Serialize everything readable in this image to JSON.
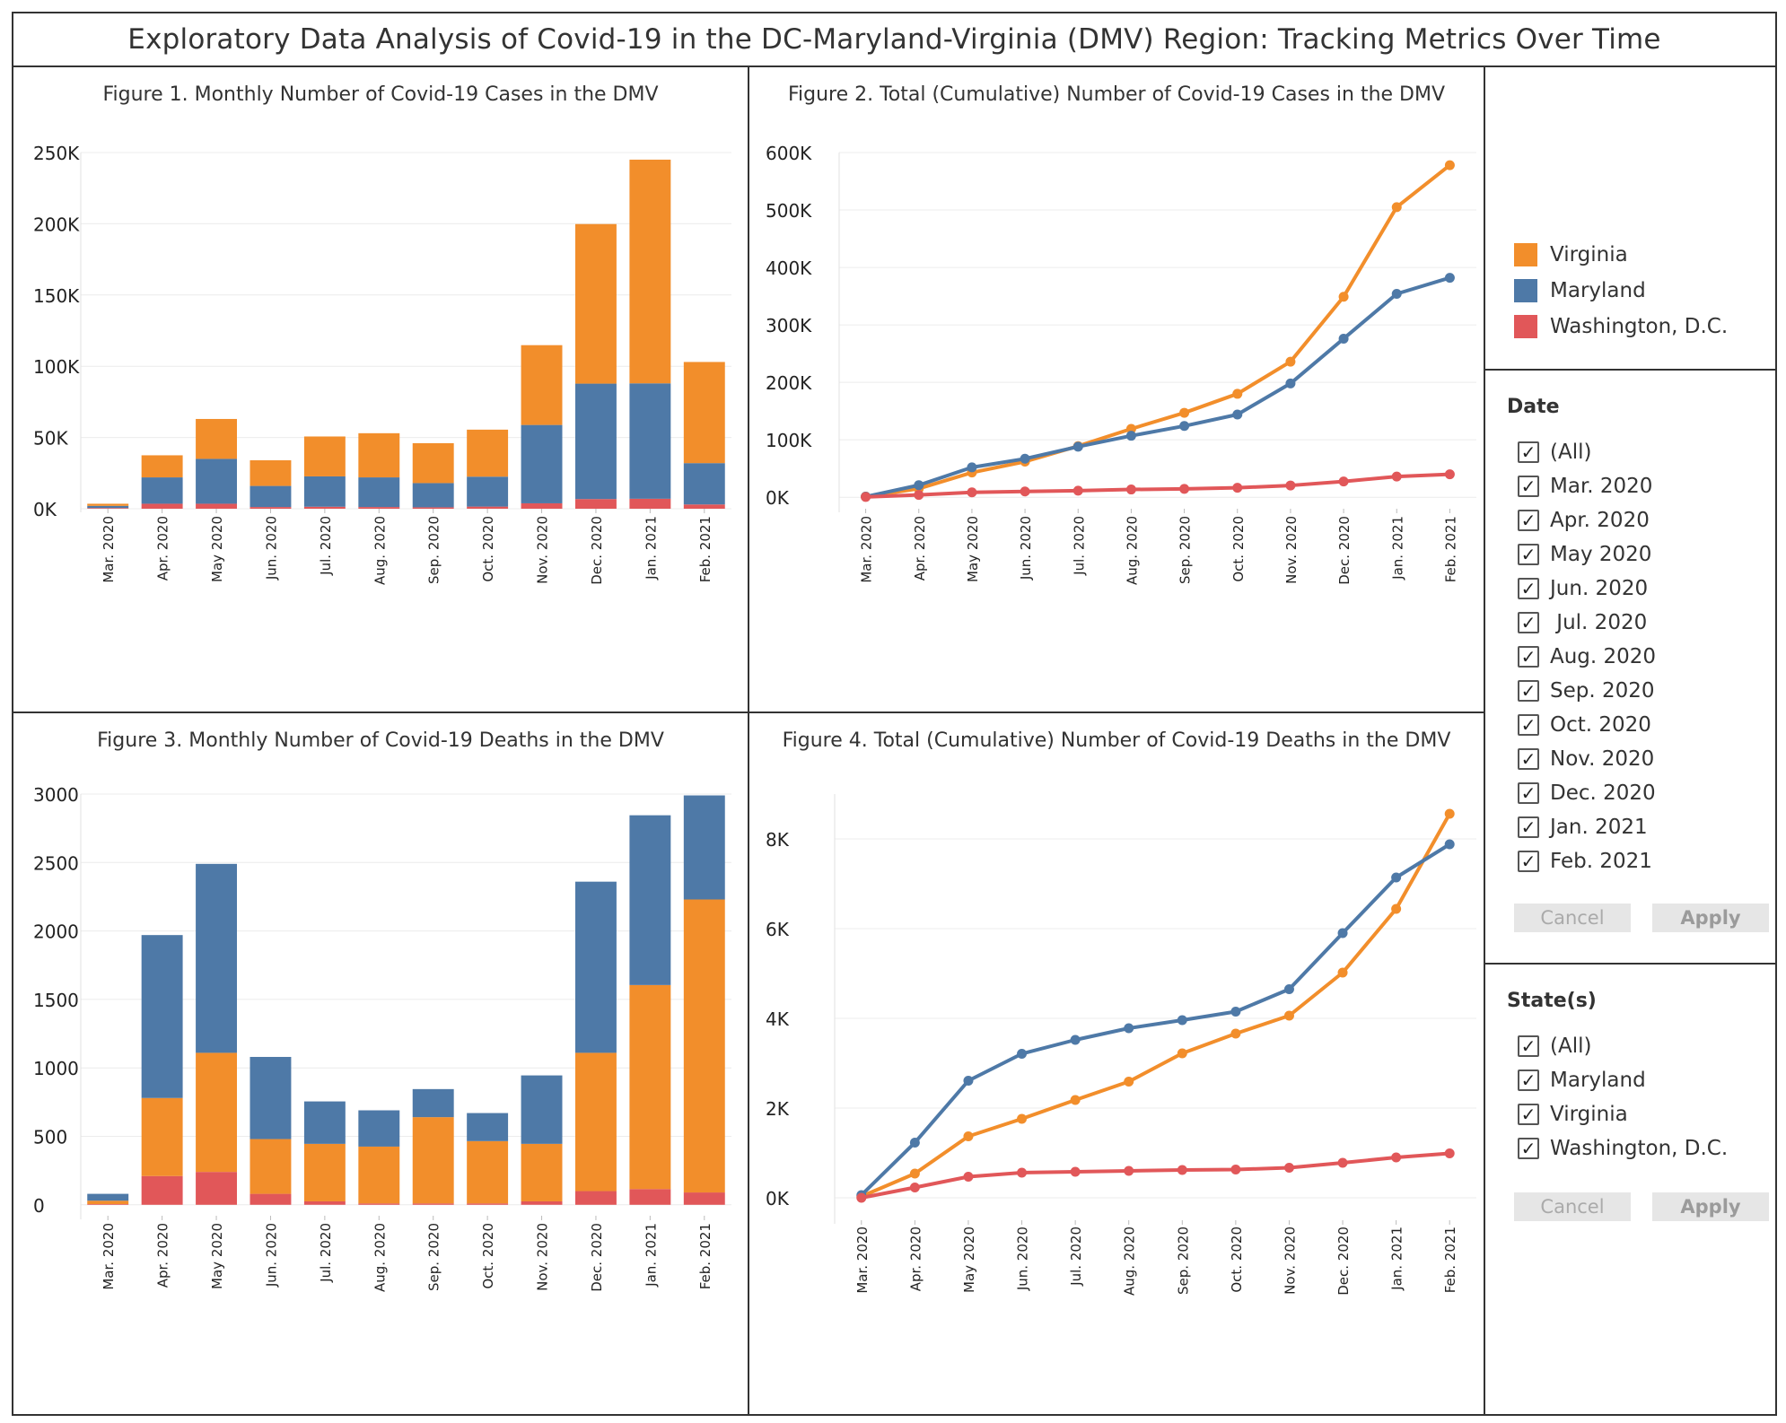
{
  "dashboard": {
    "title": "Exploratory Data Analysis of Covid-19 in the DC-Maryland-Virginia (DMV) Region: Tracking Metrics Over Time"
  },
  "colors": {
    "virginia": "#f28e2b",
    "maryland": "#4e79a7",
    "dc": "#e15759"
  },
  "legend": {
    "items": [
      {
        "label": "Virginia",
        "color": "#f28e2b"
      },
      {
        "label": "Maryland",
        "color": "#4e79a7"
      },
      {
        "label": "Washington, D.C.",
        "color": "#e15759"
      }
    ]
  },
  "filters": {
    "date": {
      "title": "Date",
      "options": [
        "(All)",
        "Mar. 2020",
        "Apr. 2020",
        "May 2020",
        "Jun. 2020",
        " Jul. 2020",
        "Aug. 2020",
        "Sep. 2020",
        "Oct. 2020",
        "Nov. 2020",
        "Dec. 2020",
        "Jan. 2021",
        "Feb. 2021"
      ],
      "cancel_label": "Cancel",
      "apply_label": "Apply"
    },
    "state": {
      "title": "State(s)",
      "options": [
        "(All)",
        "Maryland",
        "Virginia",
        "Washington, D.C."
      ],
      "cancel_label": "Cancel",
      "apply_label": "Apply"
    }
  },
  "chart_data": [
    {
      "type": "bar",
      "stacked": true,
      "title": "Figure 1. Monthly Number of Covid-19 Cases in the DMV",
      "xlabel": "",
      "ylabel": "",
      "categories": [
        "Mar. 2020",
        "Apr. 2020",
        "May 2020",
        "Jun. 2020",
        "Jul. 2020",
        "Aug. 2020",
        "Sep. 2020",
        "Oct. 2020",
        "Nov. 2020",
        "Dec. 2020",
        "Jan. 2021",
        "Feb. 2021"
      ],
      "series": [
        {
          "name": "Washington, D.C.",
          "values": [
            500,
            3500,
            3500,
            1200,
            1400,
            1200,
            1000,
            1500,
            3800,
            6800,
            7000,
            3000
          ]
        },
        {
          "name": "Maryland",
          "values": [
            1500,
            18500,
            31500,
            14800,
            21300,
            20800,
            17000,
            21000,
            55000,
            81000,
            81000,
            29000
          ]
        },
        {
          "name": "Virginia",
          "values": [
            1500,
            15500,
            28000,
            18000,
            28000,
            31000,
            28000,
            33000,
            56000,
            112000,
            157000,
            71000
          ]
        }
      ],
      "yticks": [
        0,
        50000,
        100000,
        150000,
        200000,
        250000
      ],
      "ytick_labels": [
        "0K",
        "50K",
        "100K",
        "150K",
        "200K",
        "250K"
      ],
      "ylim": [
        0,
        250000
      ]
    },
    {
      "type": "line",
      "title": "Figure 2. Total (Cumulative) Number of Covid-19 Cases in the DMV",
      "xlabel": "",
      "ylabel": "",
      "categories": [
        "Mar. 2020",
        "Apr. 2020",
        "May 2020",
        "Jun. 2020",
        "Jul. 2020",
        "Aug. 2020",
        "Sep. 2020",
        "Oct. 2020",
        "Nov. 2020",
        "Dec. 2020",
        "Jan. 2021",
        "Feb. 2021"
      ],
      "series": [
        {
          "name": "Virginia",
          "values": [
            1000,
            15000,
            43000,
            62000,
            89000,
            119000,
            147000,
            180000,
            236000,
            349000,
            505000,
            578000
          ]
        },
        {
          "name": "Maryland",
          "values": [
            1000,
            21000,
            52000,
            67000,
            88000,
            107000,
            124000,
            144000,
            198000,
            276000,
            354000,
            382000
          ]
        },
        {
          "name": "Washington, D.C.",
          "values": [
            500,
            4000,
            8500,
            10000,
            11500,
            13500,
            14500,
            16500,
            20500,
            27500,
            36000,
            40000
          ]
        }
      ],
      "yticks": [
        0,
        100000,
        200000,
        300000,
        400000,
        500000,
        600000
      ],
      "ytick_labels": [
        "0K",
        "100K",
        "200K",
        "300K",
        "400K",
        "500K",
        "600K"
      ],
      "ylim": [
        -20000,
        600000
      ]
    },
    {
      "type": "bar",
      "stacked": true,
      "title": "Figure 3. Monthly Number of Covid-19 Deaths in the DMV",
      "xlabel": "",
      "ylabel": "",
      "categories": [
        "Mar. 2020",
        "Apr. 2020",
        "May 2020",
        "Jun. 2020",
        "Jul. 2020",
        "Aug. 2020",
        "Sep. 2020",
        "Oct. 2020",
        "Nov. 2020",
        "Dec. 2020",
        "Jan. 2021",
        "Feb. 2021"
      ],
      "series": [
        {
          "name": "Washington, D.C.",
          "values": [
            5,
            210,
            240,
            80,
            25,
            10,
            10,
            10,
            25,
            100,
            115,
            90
          ]
        },
        {
          "name": "Virginia",
          "values": [
            25,
            570,
            870,
            400,
            420,
            415,
            630,
            455,
            420,
            1010,
            1490,
            2140
          ]
        },
        {
          "name": "Maryland",
          "values": [
            50,
            1190,
            1380,
            600,
            310,
            265,
            205,
            205,
            500,
            1250,
            1240,
            760
          ]
        }
      ],
      "yticks": [
        0,
        500,
        1000,
        1500,
        2000,
        2500,
        3000
      ],
      "ytick_labels": [
        "0",
        "500",
        "1000",
        "1500",
        "2000",
        "2500",
        "3000"
      ],
      "ylim": [
        -80,
        3000
      ]
    },
    {
      "type": "line",
      "title": "Figure 4. Total (Cumulative) Number of Covid-19 Deaths in the DMV",
      "xlabel": "",
      "ylabel": "",
      "categories": [
        "Mar. 2020",
        "Apr. 2020",
        "May 2020",
        "Jun. 2020",
        "Jul. 2020",
        "Aug. 2020",
        "Sep. 2020",
        "Oct. 2020",
        "Nov. 2020",
        "Dec. 2020",
        "Jan. 2021",
        "Feb. 2021"
      ],
      "series": [
        {
          "name": "Virginia",
          "values": [
            30,
            540,
            1370,
            1760,
            2180,
            2590,
            3220,
            3660,
            4060,
            5020,
            6440,
            8560
          ]
        },
        {
          "name": "Maryland",
          "values": [
            60,
            1230,
            2610,
            3210,
            3520,
            3780,
            3960,
            4150,
            4650,
            5900,
            7140,
            7880
          ]
        },
        {
          "name": "Washington, D.C.",
          "values": [
            0,
            230,
            470,
            560,
            580,
            600,
            620,
            630,
            670,
            780,
            900,
            990
          ]
        }
      ],
      "yticks": [
        0,
        2000,
        4000,
        6000,
        8000
      ],
      "ytick_labels": [
        "0K",
        "2K",
        "4K",
        "6K",
        "8K"
      ],
      "ylim": [
        -500,
        9000
      ]
    }
  ]
}
